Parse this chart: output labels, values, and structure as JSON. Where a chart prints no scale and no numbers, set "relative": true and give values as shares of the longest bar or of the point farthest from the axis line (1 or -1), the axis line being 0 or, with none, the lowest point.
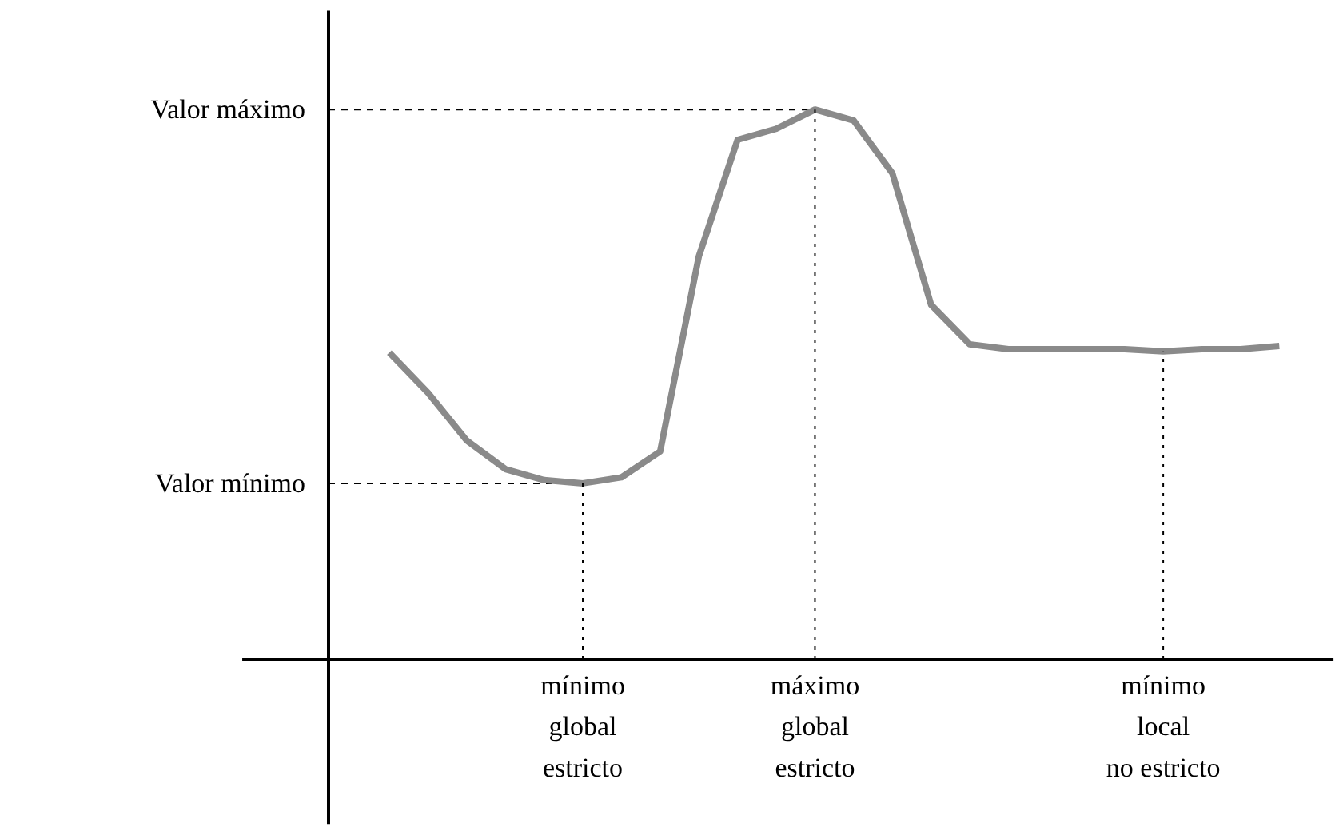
{
  "chart_data": {
    "type": "line",
    "relative": true,
    "categories": [
      null,
      null,
      null,
      null,
      null,
      null,
      null,
      null,
      null,
      null,
      null,
      null,
      null,
      null,
      null,
      null,
      null,
      null,
      null,
      null,
      null,
      null,
      null,
      null
    ],
    "series": [
      {
        "color": "#8a8a8a",
        "values": [
          0.558,
          0.485,
          0.398,
          0.346,
          0.326,
          0.32,
          0.331,
          0.378,
          0.733,
          0.945,
          0.965,
          1,
          0.98,
          0.884,
          0.645,
          0.573,
          0.564,
          0.564,
          0.564,
          0.564,
          0.56,
          0.564,
          0.564,
          0.57
        ]
      }
    ],
    "ref_lines": [
      {
        "axis": "y",
        "value": 1,
        "label": "Valor máximo",
        "line_style": "dashed"
      },
      {
        "axis": "y",
        "value": 0.32,
        "label": "Valor mínimo",
        "line_style": "dashed"
      }
    ],
    "annotations": [
      "mínimo\nglobal\nestricto",
      "máximo\nglobal\nestricto",
      "mínimo\nlocal\nno estricto"
    ],
    "grid": false
  }
}
